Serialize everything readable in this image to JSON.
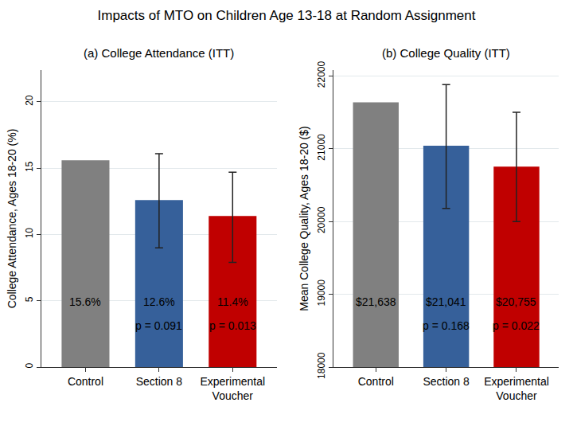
{
  "title": "Impacts of MTO on Children Age 13-18 at Random Assignment",
  "chart_data": [
    {
      "type": "bar",
      "title": "(a) College Attendance (ITT)",
      "y_label": "College Attendance, Ages 18-20 (%)",
      "categories": [
        "Control",
        "Section 8",
        "Experimental Voucher"
      ],
      "values": [
        15.6,
        12.6,
        11.4
      ],
      "value_labels": [
        "15.6%",
        "12.6%",
        "11.4%"
      ],
      "ci_low": [
        null,
        9.0,
        7.9
      ],
      "ci_high": [
        null,
        16.1,
        14.7
      ],
      "p_labels": [
        null,
        "p = 0.091",
        "p = 0.013"
      ],
      "colors": [
        "#808080",
        "#36609a",
        "#c00000"
      ],
      "ylim": [
        0,
        22.4
      ],
      "yticks": [
        0,
        5,
        10,
        15,
        20
      ],
      "grid": true,
      "data_labels": true
    },
    {
      "type": "bar",
      "title": "(b) College Quality (ITT)",
      "y_label": "Mean College Quality, Ages 18-20 ($)",
      "categories": [
        "Control",
        "Section 8",
        "Experimental Voucher"
      ],
      "values": [
        21638,
        21041,
        20755
      ],
      "value_labels": [
        "$21,638",
        "$21,041",
        "$20,755"
      ],
      "ci_low": [
        null,
        20180,
        20000
      ],
      "ci_high": [
        null,
        21880,
        21500
      ],
      "p_labels": [
        null,
        "p = 0.168",
        "p = 0.022"
      ],
      "colors": [
        "#808080",
        "#36609a",
        "#c00000"
      ],
      "ylim": [
        18000,
        22080
      ],
      "yticks": [
        18000,
        19000,
        20000,
        21000,
        22000
      ],
      "grid": true,
      "data_labels": true
    }
  ]
}
